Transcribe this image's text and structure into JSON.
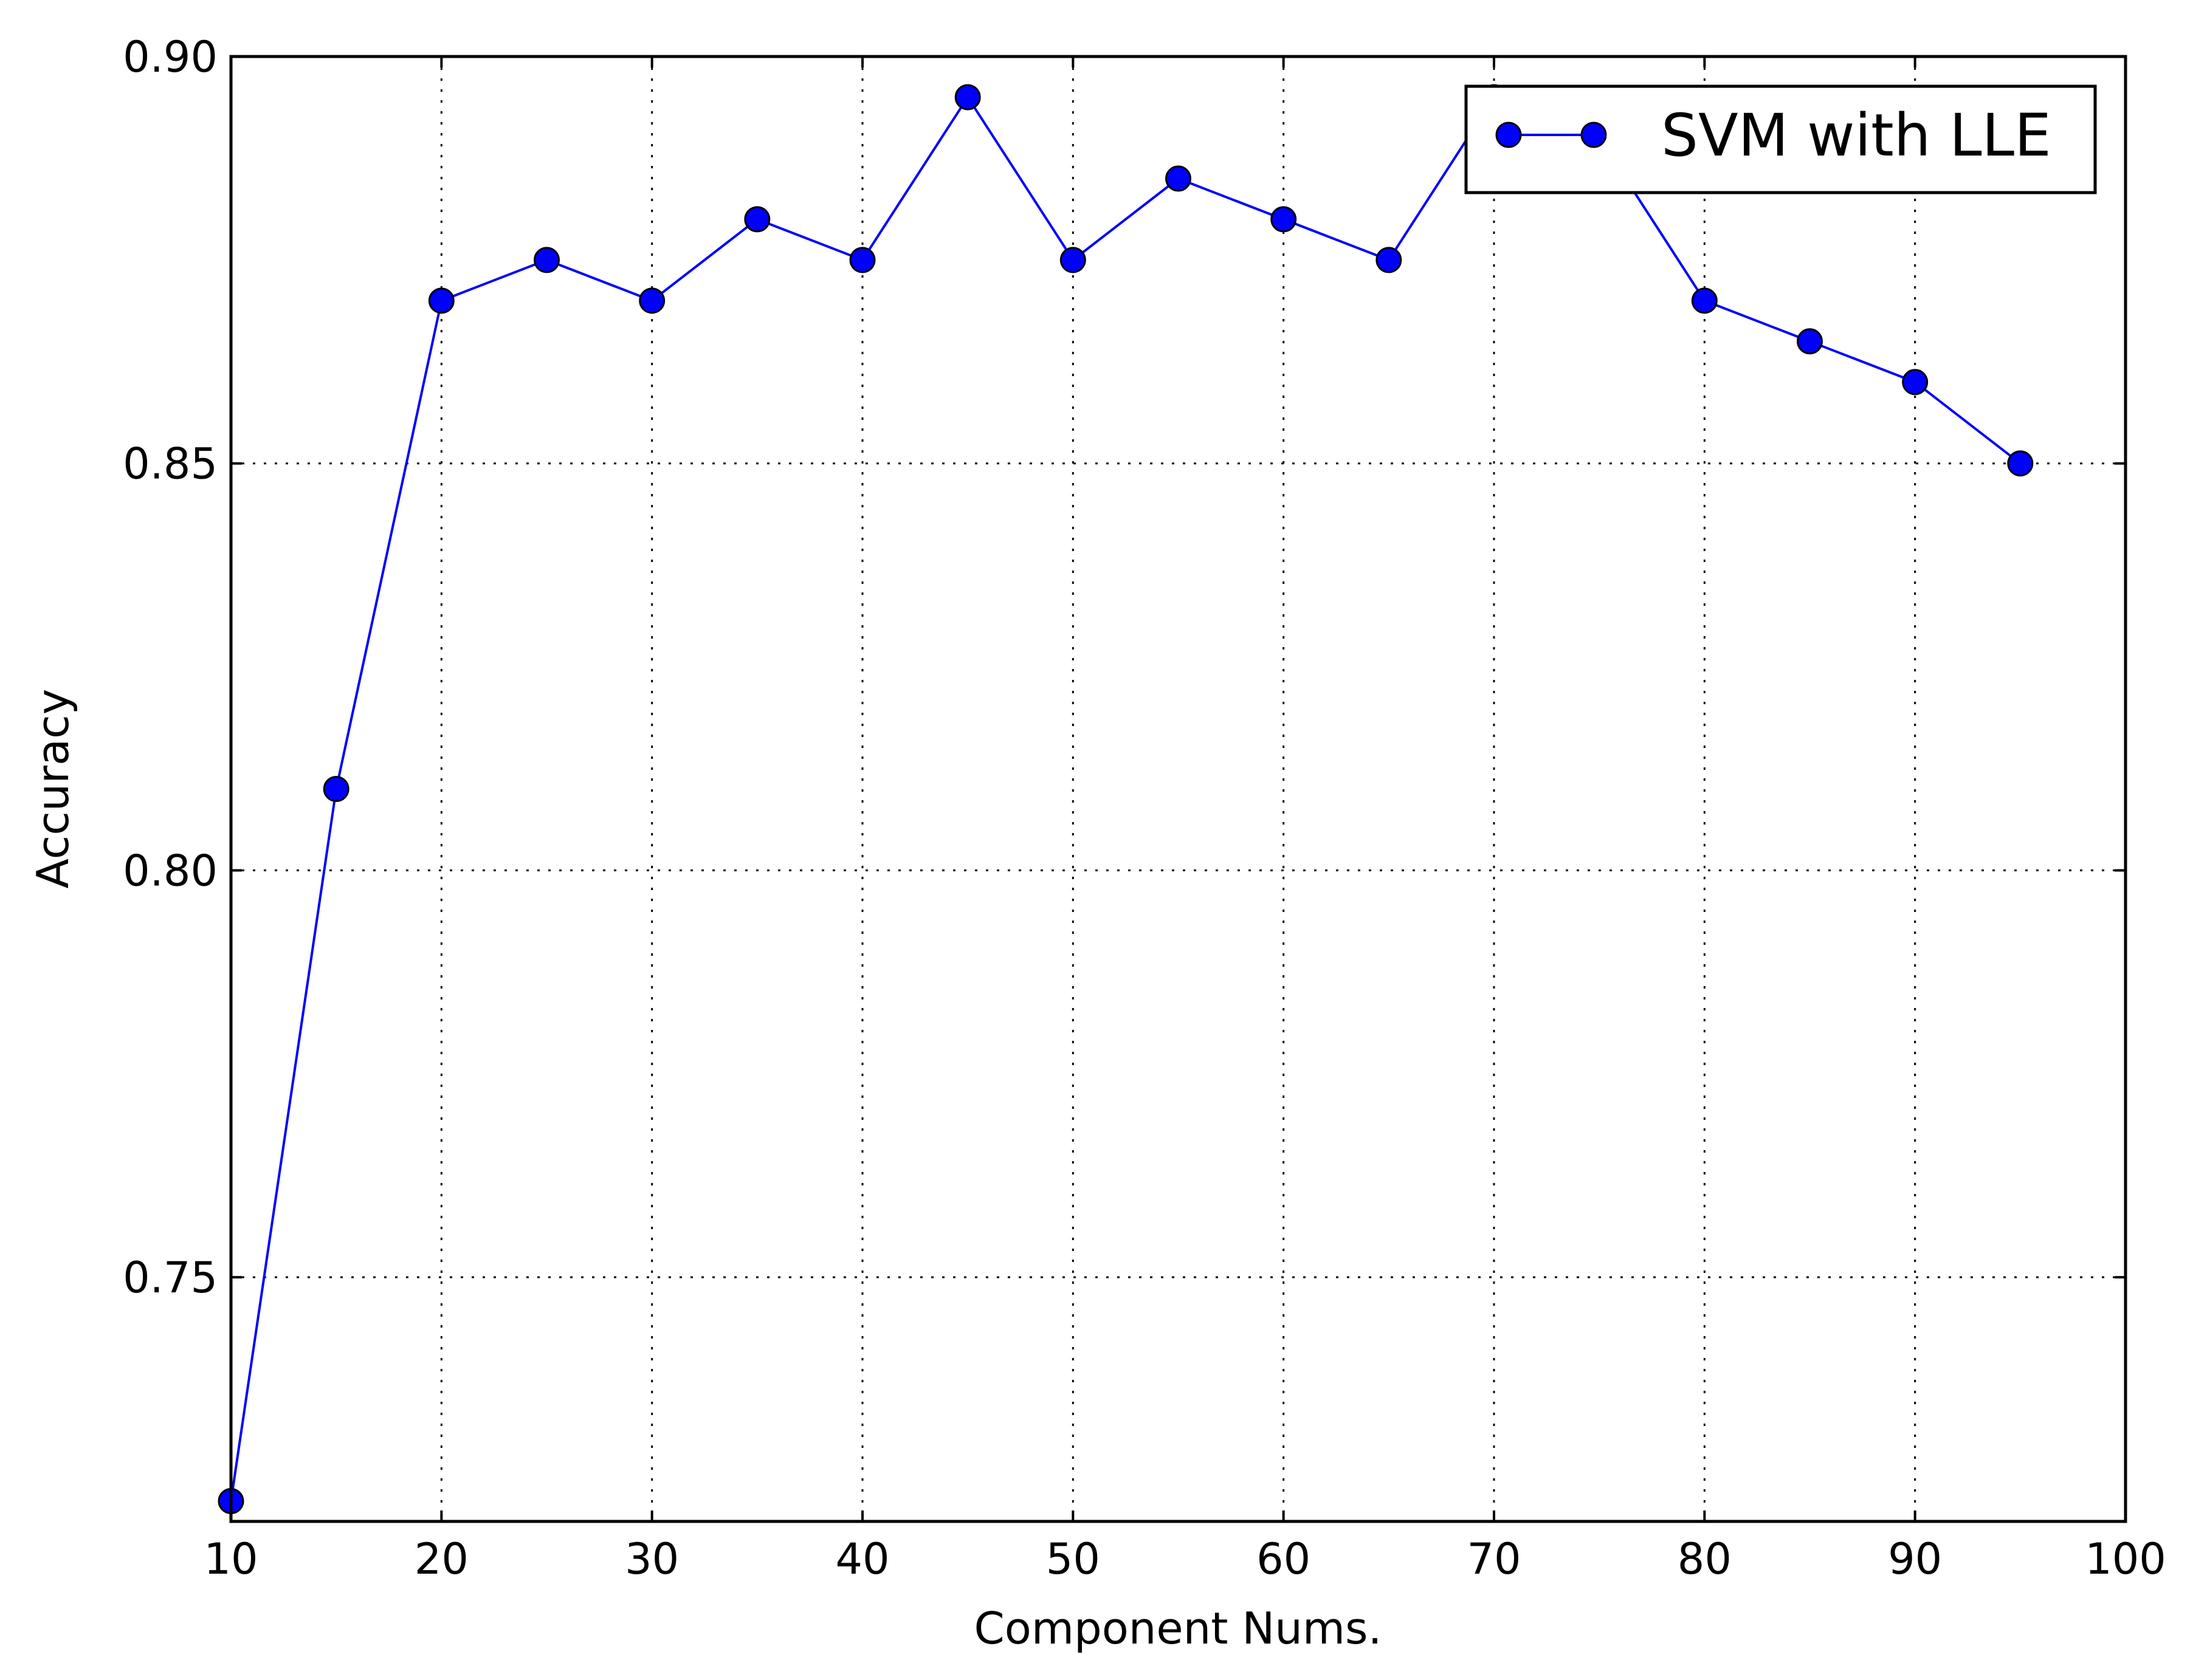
{
  "chart_data": {
    "type": "line",
    "xlabel": "Component Nums.",
    "ylabel": "Accuracy",
    "xlim": [
      10,
      100
    ],
    "ylim": [
      0.72,
      0.9
    ],
    "xticks": [
      10,
      20,
      30,
      40,
      50,
      60,
      70,
      80,
      90,
      100
    ],
    "xtick_labels": [
      "10",
      "20",
      "30",
      "40",
      "50",
      "60",
      "70",
      "80",
      "90",
      "100"
    ],
    "yticks": [
      0.75,
      0.8,
      0.85,
      0.9
    ],
    "ytick_labels": [
      "0.75",
      "0.80",
      "0.85",
      "0.90"
    ],
    "grid": true,
    "legend_position": "top-right",
    "series": [
      {
        "name": "SVM with LLE",
        "color": "#0000ff",
        "marker": "circle",
        "x": [
          10,
          15,
          20,
          25,
          30,
          35,
          40,
          45,
          50,
          55,
          60,
          65,
          70,
          75,
          80,
          85,
          90,
          95
        ],
        "y": [
          0.7225,
          0.81,
          0.87,
          0.875,
          0.87,
          0.88,
          0.875,
          0.895,
          0.875,
          0.885,
          0.88,
          0.875,
          0.895,
          0.89,
          0.87,
          0.865,
          0.86,
          0.85
        ]
      }
    ]
  }
}
